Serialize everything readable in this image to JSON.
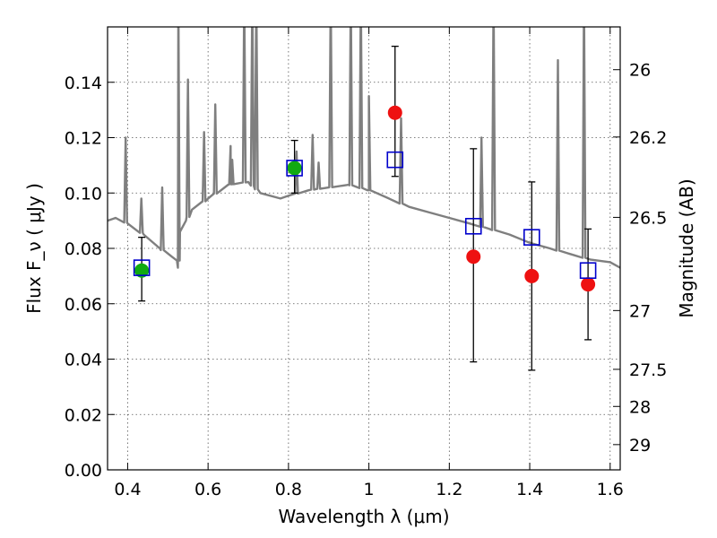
{
  "chart_data": {
    "type": "scatter",
    "xlabel": "Wavelength  λ (μm)",
    "ylabel": "Flux  F_ν  ( μJy )",
    "y2label": "Magnitude (AB)",
    "xlim": [
      0.35,
      1.625
    ],
    "ylim": [
      0.0,
      0.16
    ],
    "x_ticks": [
      {
        "v": 0.4,
        "label": "0.4"
      },
      {
        "v": 0.6,
        "label": "0.6"
      },
      {
        "v": 0.8,
        "label": "0.8"
      },
      {
        "v": 1.0,
        "label": "1"
      },
      {
        "v": 1.2,
        "label": "1.2"
      },
      {
        "v": 1.4,
        "label": "1.4"
      },
      {
        "v": 1.6,
        "label": "1.6"
      }
    ],
    "y_ticks": [
      {
        "v": 0.0,
        "label": "0.00"
      },
      {
        "v": 0.02,
        "label": "0.02"
      },
      {
        "v": 0.04,
        "label": "0.04"
      },
      {
        "v": 0.06,
        "label": "0.06"
      },
      {
        "v": 0.08,
        "label": "0.08"
      },
      {
        "v": 0.1,
        "label": "0.10"
      },
      {
        "v": 0.12,
        "label": "0.12"
      },
      {
        "v": 0.14,
        "label": "0.14"
      }
    ],
    "y2_ticks": [
      {
        "mag": 26,
        "label": "26"
      },
      {
        "mag": 26.2,
        "label": "26.2"
      },
      {
        "mag": 26.5,
        "label": "26.5"
      },
      {
        "mag": 27,
        "label": "27"
      },
      {
        "mag": 27.5,
        "label": "27.5"
      },
      {
        "mag": 28,
        "label": "28"
      },
      {
        "mag": 29,
        "label": "29"
      }
    ],
    "grid": true,
    "colors": {
      "model": "#7f7f7f",
      "observed": "#ee1111",
      "green": "#11aa11",
      "box": "#0000cc",
      "errorbar": "#000000",
      "grid": "#555555"
    },
    "model_spectrum": {
      "continuum": [
        [
          0.35,
          0.09
        ],
        [
          0.37,
          0.091
        ],
        [
          0.4,
          0.089
        ],
        [
          0.44,
          0.085
        ],
        [
          0.48,
          0.08
        ],
        [
          0.51,
          0.077
        ],
        [
          0.525,
          0.073
        ],
        [
          0.53,
          0.086
        ],
        [
          0.545,
          0.09
        ],
        [
          0.56,
          0.094
        ],
        [
          0.6,
          0.098
        ],
        [
          0.65,
          0.103
        ],
        [
          0.7,
          0.104
        ],
        [
          0.73,
          0.1
        ],
        [
          0.78,
          0.098
        ],
        [
          0.8,
          0.099
        ],
        [
          0.85,
          0.101
        ],
        [
          0.9,
          0.102
        ],
        [
          0.95,
          0.103
        ],
        [
          1.0,
          0.101
        ],
        [
          1.05,
          0.098
        ],
        [
          1.1,
          0.095
        ],
        [
          1.15,
          0.093
        ],
        [
          1.2,
          0.091
        ],
        [
          1.25,
          0.089
        ],
        [
          1.3,
          0.087
        ],
        [
          1.35,
          0.085
        ],
        [
          1.4,
          0.082
        ],
        [
          1.45,
          0.08
        ],
        [
          1.5,
          0.078
        ],
        [
          1.55,
          0.076
        ],
        [
          1.6,
          0.075
        ],
        [
          1.625,
          0.073
        ]
      ],
      "lines": [
        [
          0.395,
          0.12
        ],
        [
          0.434,
          0.098
        ],
        [
          0.486,
          0.102
        ],
        [
          0.526,
          0.18
        ],
        [
          0.55,
          0.141
        ],
        [
          0.59,
          0.122
        ],
        [
          0.618,
          0.132
        ],
        [
          0.656,
          0.117
        ],
        [
          0.66,
          0.112
        ],
        [
          0.69,
          0.18
        ],
        [
          0.71,
          0.18
        ],
        [
          0.72,
          0.18
        ],
        [
          0.82,
          0.115
        ],
        [
          0.86,
          0.121
        ],
        [
          0.875,
          0.111
        ],
        [
          0.905,
          0.18
        ],
        [
          0.955,
          0.18
        ],
        [
          0.98,
          0.18
        ],
        [
          1.0,
          0.135
        ],
        [
          1.08,
          0.127
        ],
        [
          1.28,
          0.12
        ],
        [
          1.31,
          0.18
        ],
        [
          1.47,
          0.148
        ],
        [
          1.535,
          0.18
        ]
      ]
    },
    "series": [
      {
        "marker": "circle",
        "color": "observed",
        "points": [
          {
            "x": 1.065,
            "y": 0.129,
            "yerr_low": 0.106,
            "yerr_high": 0.153
          },
          {
            "x": 1.26,
            "y": 0.077,
            "yerr_low": 0.039,
            "yerr_high": 0.116
          },
          {
            "x": 1.405,
            "y": 0.07,
            "yerr_low": 0.036,
            "yerr_high": 0.104
          },
          {
            "x": 1.545,
            "y": 0.067,
            "yerr_low": 0.047,
            "yerr_high": 0.087
          }
        ]
      },
      {
        "marker": "circle",
        "color": "green",
        "points": [
          {
            "x": 0.435,
            "y": 0.072,
            "yerr_low": 0.061,
            "yerr_high": 0.084
          },
          {
            "x": 0.815,
            "y": 0.109,
            "yerr_low": 0.1,
            "yerr_high": 0.119
          }
        ]
      },
      {
        "marker": "square",
        "color": "box",
        "points": [
          {
            "x": 0.435,
            "y": 0.073
          },
          {
            "x": 0.815,
            "y": 0.109
          },
          {
            "x": 1.065,
            "y": 0.112
          },
          {
            "x": 1.26,
            "y": 0.088
          },
          {
            "x": 1.405,
            "y": 0.084
          },
          {
            "x": 1.545,
            "y": 0.072
          }
        ]
      }
    ]
  }
}
